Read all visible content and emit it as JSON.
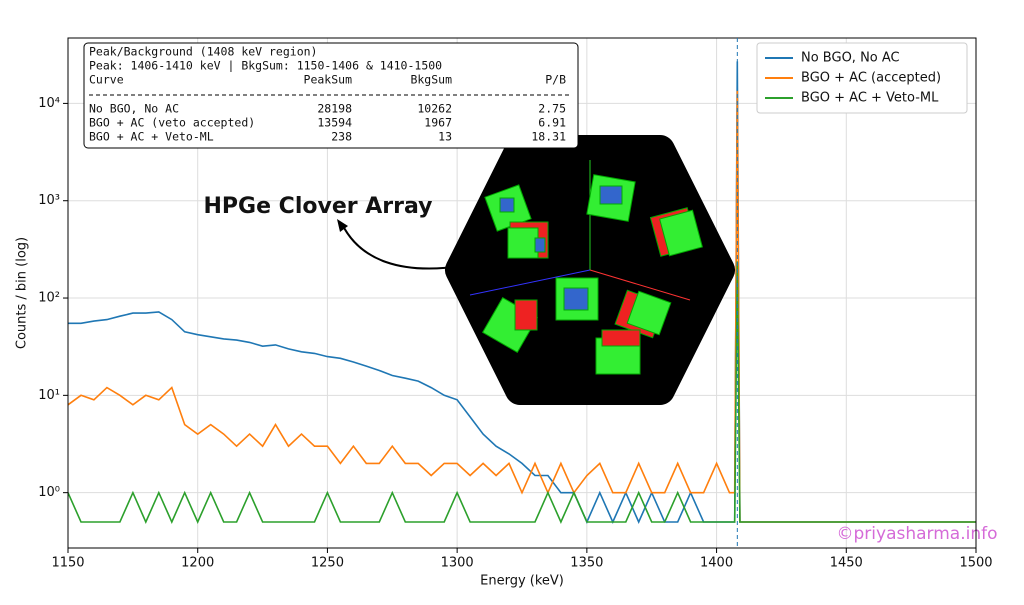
{
  "chart_data": {
    "type": "line",
    "xlabel": "Energy (keV)",
    "ylabel": "Counts / bin (log)",
    "x": [
      1150,
      1155,
      1160,
      1165,
      1170,
      1175,
      1180,
      1185,
      1190,
      1195,
      1200,
      1205,
      1210,
      1215,
      1220,
      1225,
      1230,
      1235,
      1240,
      1245,
      1250,
      1255,
      1260,
      1265,
      1270,
      1275,
      1280,
      1285,
      1290,
      1295,
      1300,
      1305,
      1310,
      1315,
      1320,
      1325,
      1330,
      1335,
      1340,
      1345,
      1350,
      1355,
      1360,
      1365,
      1370,
      1375,
      1380,
      1385,
      1390,
      1395,
      1400,
      1405,
      1406,
      1407,
      1408,
      1409,
      1410,
      1420,
      1440,
      1460,
      1480,
      1500
    ],
    "series": [
      {
        "name": "No BGO, No AC",
        "color": "#1f77b4",
        "values": [
          55,
          55,
          58,
          60,
          65,
          70,
          70,
          72,
          60,
          45,
          42,
          40,
          38,
          37,
          35,
          32,
          33,
          30,
          28,
          27,
          25,
          24,
          22,
          20,
          18,
          16,
          15,
          14,
          12,
          10,
          9,
          6,
          4,
          3,
          2.5,
          2,
          1.5,
          1.5,
          1,
          1,
          0.5,
          1,
          0.5,
          1,
          0.5,
          1,
          0.5,
          0.5,
          1,
          0.5,
          0.5,
          0.5,
          0.5,
          0.5,
          27000,
          0.5,
          0.5,
          0.5,
          0.5,
          0.5,
          0.5,
          0.5
        ]
      },
      {
        "name": "BGO + AC (accepted)",
        "color": "#ff7f0e",
        "values": [
          8,
          10,
          9,
          12,
          10,
          8,
          10,
          9,
          12,
          5,
          4,
          5,
          4,
          3,
          4,
          3,
          5,
          3,
          4,
          3,
          3,
          2,
          3,
          2,
          2,
          3,
          2,
          2,
          1.5,
          2,
          2,
          1.5,
          2,
          1.5,
          2,
          1,
          2,
          1,
          2,
          1,
          1.5,
          2,
          1,
          1,
          2,
          1,
          1,
          2,
          1,
          1,
          2,
          1,
          1,
          1,
          13500,
          0.5,
          0.5,
          0.5,
          0.5,
          0.5,
          0.5,
          0.5
        ]
      },
      {
        "name": "BGO + AC + Veto-ML",
        "color": "#2ca02c",
        "values": [
          1,
          0.5,
          0.5,
          0.5,
          0.5,
          1,
          0.5,
          1,
          0.5,
          1,
          0.5,
          1,
          0.5,
          0.5,
          1,
          0.5,
          0.5,
          0.5,
          0.5,
          0.5,
          1,
          0.5,
          0.5,
          0.5,
          0.5,
          1,
          0.5,
          0.5,
          0.5,
          0.5,
          1,
          0.5,
          0.5,
          0.5,
          0.5,
          0.5,
          0.5,
          1,
          0.5,
          1,
          0.5,
          0.5,
          0.5,
          0.5,
          1,
          0.5,
          0.5,
          1,
          0.5,
          0.5,
          0.5,
          0.5,
          0.5,
          0.5,
          238,
          0.5,
          0.5,
          0.5,
          0.5,
          0.5,
          0.5,
          0.5
        ]
      }
    ],
    "xlim": [
      1150,
      1500
    ],
    "xticks": [
      1150,
      1200,
      1250,
      1300,
      1350,
      1400,
      1450,
      1500
    ],
    "ylim": [
      0.27,
      47000
    ],
    "log_y": true,
    "yticks": [
      {
        "value": 1,
        "label": "10⁰"
      },
      {
        "value": 10,
        "label": "10¹"
      },
      {
        "value": 100,
        "label": "10²"
      },
      {
        "value": 1000,
        "label": "10³"
      },
      {
        "value": 10000,
        "label": "10⁴"
      }
    ],
    "grid": true,
    "legend": "upper right",
    "vline": 1408,
    "annotation": "HPGe Clover Array",
    "watermark": "©priyasharma.info",
    "table": {
      "title": "Peak/Background (1408 keV region)",
      "subtitle": "Peak: 1406-1410 keV | BkgSum: 1150-1406 & 1410-1500",
      "columns": [
        "Curve",
        "PeakSum",
        "BkgSum",
        "P/B"
      ],
      "rows": [
        [
          "No BGO, No AC",
          28198,
          10262,
          2.75
        ],
        [
          "BGO + AC (veto accepted)",
          13594,
          1967,
          6.91
        ],
        [
          "BGO + AC + Veto-ML",
          238,
          13,
          18.31
        ]
      ]
    }
  }
}
